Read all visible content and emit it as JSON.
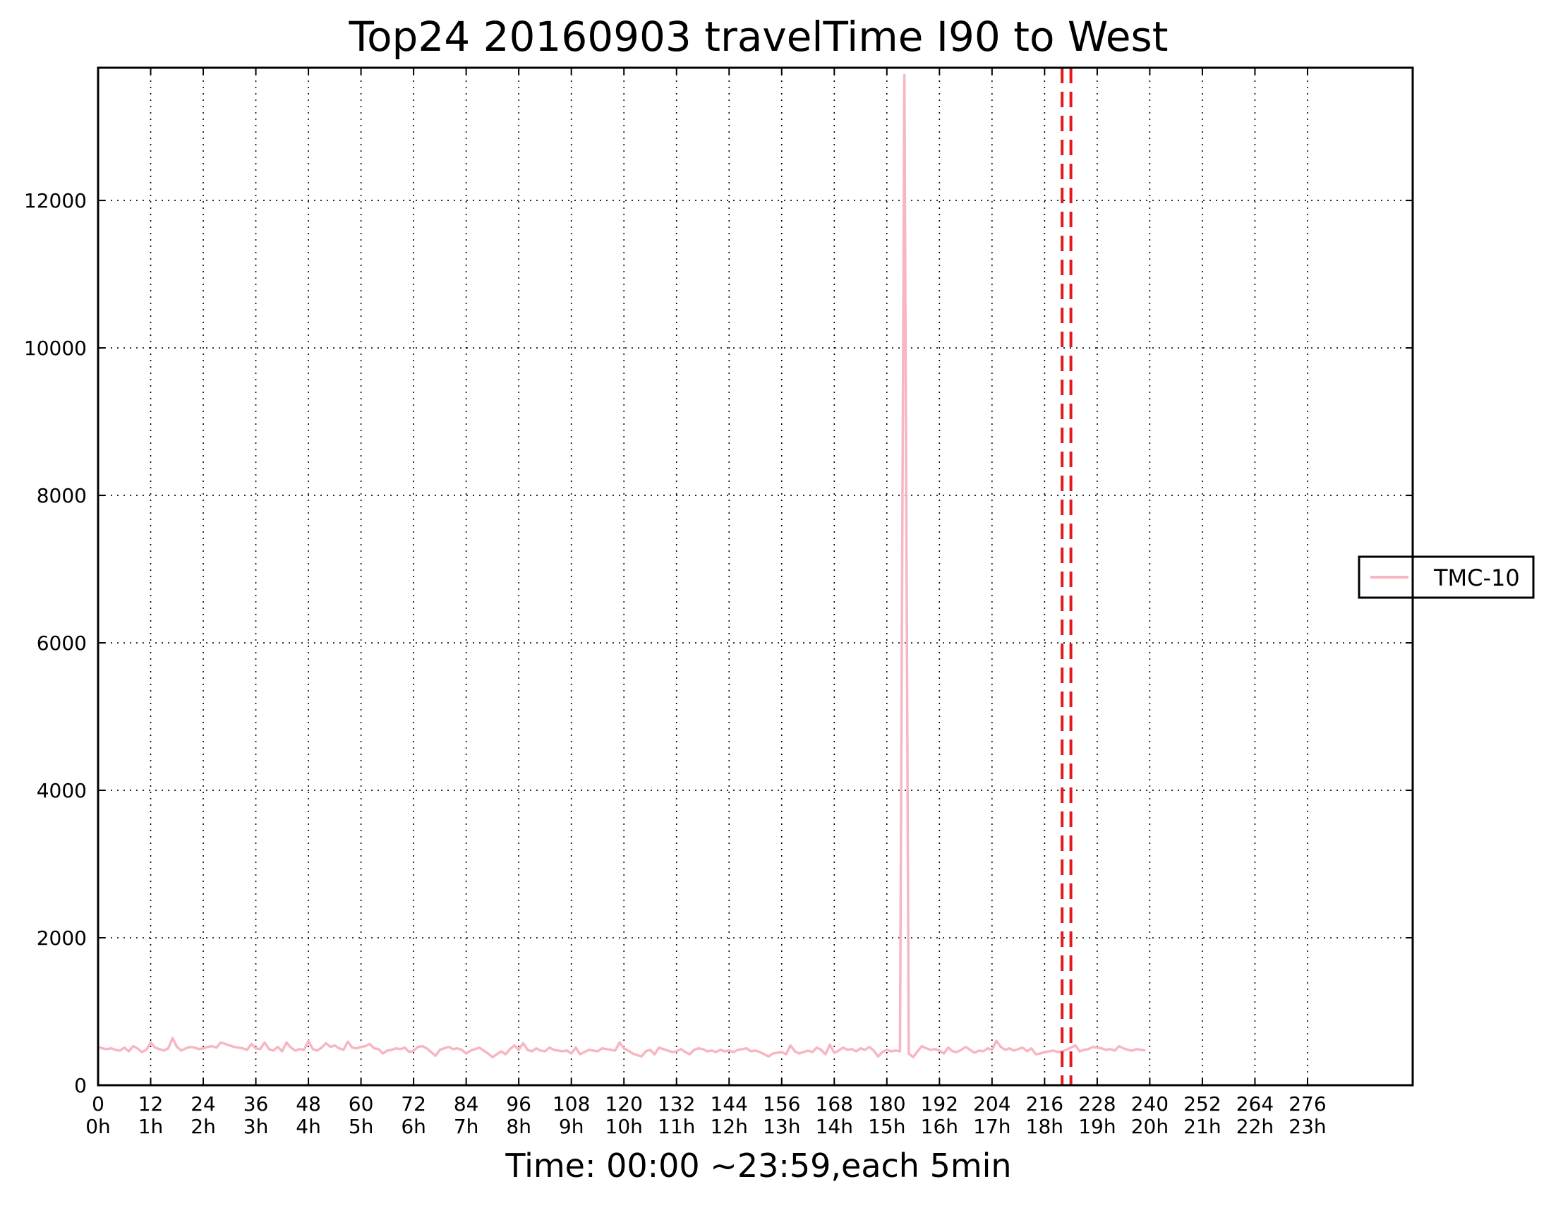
{
  "chart_data": {
    "type": "line",
    "title": "Top24 20160903 travelTime I90 to West",
    "xlabel": "Time: 00:00 ~23:59,each 5min",
    "ylabel": "",
    "xlim": [
      0,
      300
    ],
    "ylim": [
      0,
      13800
    ],
    "grid": true,
    "legend_position": "right, outside plot area",
    "x_ticks": [
      0,
      12,
      24,
      36,
      48,
      60,
      72,
      84,
      96,
      108,
      120,
      132,
      144,
      156,
      168,
      180,
      192,
      204,
      216,
      228,
      240,
      252,
      264,
      276
    ],
    "x_tick_labels": [
      "0",
      "12",
      "24",
      "36",
      "48",
      "60",
      "72",
      "84",
      "96",
      "108",
      "120",
      "132",
      "144",
      "156",
      "168",
      "180",
      "192",
      "204",
      "216",
      "228",
      "240",
      "252",
      "264",
      "276"
    ],
    "x_tick_hour_labels": [
      "0h",
      "1h",
      "2h",
      "3h",
      "4h",
      "5h",
      "6h",
      "7h",
      "8h",
      "9h",
      "10h",
      "11h",
      "12h",
      "13h",
      "14h",
      "15h",
      "16h",
      "17h",
      "18h",
      "19h",
      "20h",
      "21h",
      "22h",
      "23h"
    ],
    "y_ticks": [
      0,
      2000,
      4000,
      6000,
      8000,
      10000,
      12000
    ],
    "y_tick_labels": [
      "0",
      "2000",
      "4000",
      "6000",
      "8000",
      "10000",
      "12000"
    ],
    "vertical_markers": [
      {
        "x": 220,
        "color": "#e31a1c",
        "style": "dashed"
      },
      {
        "x": 222,
        "color": "#e31a1c",
        "style": "dashed"
      }
    ],
    "series": [
      {
        "name": "TMC-10",
        "color": "#f7b6c2",
        "values": [
          520,
          500,
          490,
          500,
          480,
          470,
          510,
          460,
          530,
          500,
          450,
          480,
          580,
          510,
          490,
          470,
          500,
          640,
          520,
          470,
          500,
          520,
          510,
          490,
          500,
          520,
          530,
          510,
          580,
          560,
          540,
          520,
          510,
          500,
          480,
          560,
          500,
          490,
          580,
          490,
          470,
          520,
          460,
          580,
          510,
          470,
          490,
          480,
          600,
          490,
          470,
          510,
          570,
          520,
          540,
          500,
          480,
          590,
          510,
          500,
          520,
          530,
          560,
          500,
          490,
          430,
          470,
          480,
          500,
          490,
          510,
          450,
          470,
          520,
          530,
          500,
          450,
          400,
          480,
          500,
          520,
          490,
          500,
          480,
          430,
          470,
          490,
          510,
          470,
          430,
          380,
          420,
          460,
          420,
          490,
          540,
          480,
          570,
          480,
          460,
          500,
          470,
          460,
          510,
          480,
          470,
          460,
          470,
          430,
          510,
          420,
          450,
          480,
          470,
          460,
          500,
          490,
          480,
          470,
          580,
          500,
          470,
          430,
          410,
          390,
          460,
          480,
          420,
          510,
          490,
          470,
          450,
          460,
          490,
          450,
          420,
          480,
          500,
          490,
          460,
          470,
          450,
          480,
          460,
          470,
          450,
          480,
          490,
          500,
          460,
          470,
          450,
          420,
          390,
          430,
          440,
          450,
          420,
          540,
          460,
          430,
          450,
          470,
          450,
          510,
          480,
          420,
          550,
          440,
          470,
          510,
          480,
          490,
          460,
          500,
          480,
          520,
          470,
          390,
          450,
          480,
          460,
          470,
          460,
          13700,
          430,
          380,
          460,
          530,
          500,
          480,
          490,
          470,
          430,
          510,
          460,
          450,
          480,
          520,
          480,
          440,
          470,
          460,
          500,
          480,
          600,
          520,
          480,
          500,
          470,
          490,
          510,
          460,
          500,
          420,
          430,
          450,
          460,
          470,
          450,
          460,
          480,
          510,
          540,
          460,
          480,
          490,
          520,
          510,
          500,
          480,
          490,
          470,
          530,
          500,
          480,
          470,
          490,
          480,
          470
        ]
      }
    ]
  }
}
